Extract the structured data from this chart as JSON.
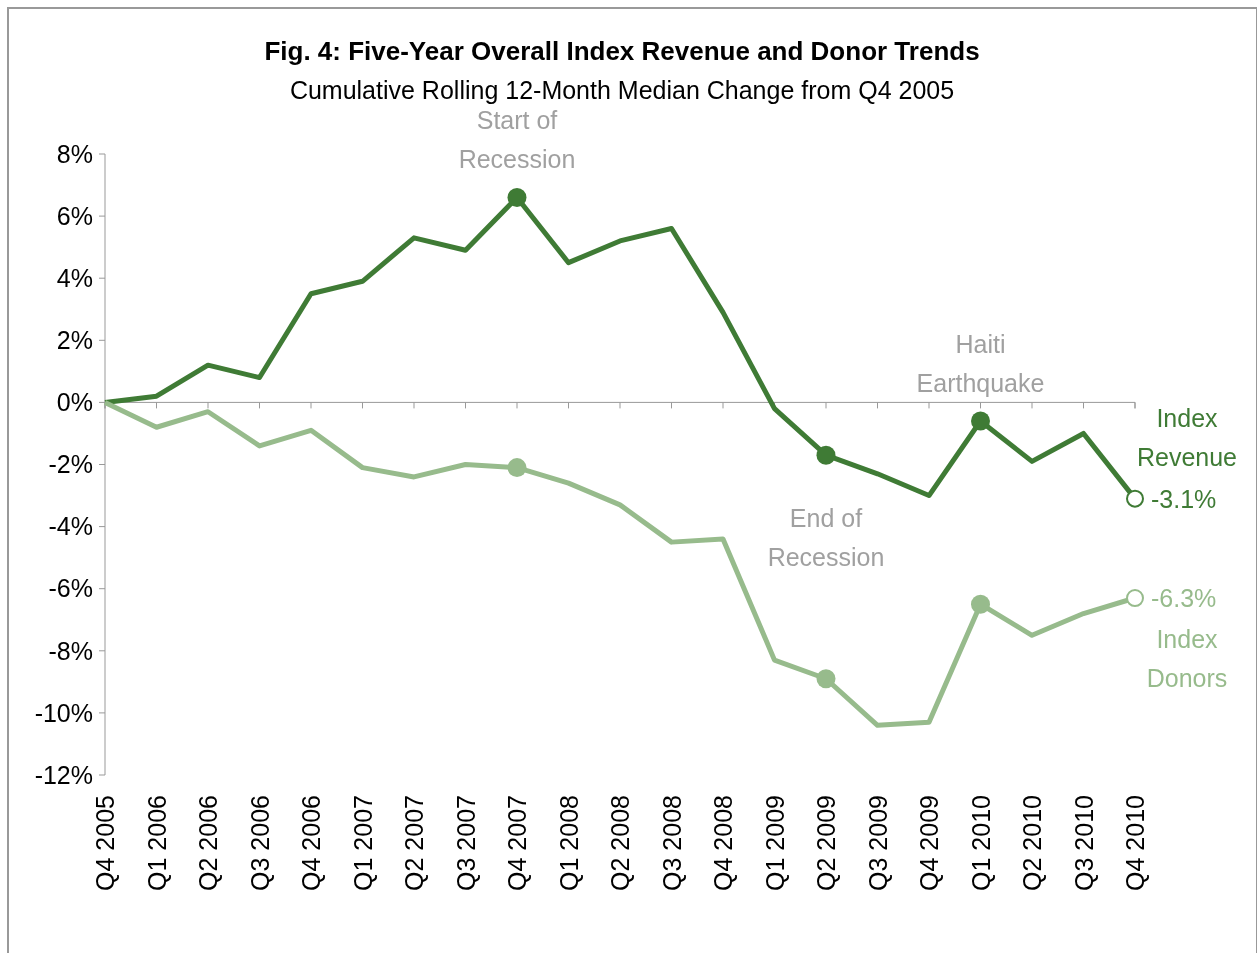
{
  "chart_data": {
    "type": "line",
    "title": "Fig. 4: Five-Year Overall Index Revenue and Donor Trends",
    "subtitle": "Cumulative Rolling 12-Month Median Change from Q4 2005",
    "categories": [
      "Q4 2005",
      "Q1 2006",
      "Q2 2006",
      "Q3 2006",
      "Q4 2006",
      "Q1 2007",
      "Q2 2007",
      "Q3 2007",
      "Q4 2007",
      "Q1 2008",
      "Q2 2008",
      "Q3 2008",
      "Q4 2008",
      "Q1 2009",
      "Q2 2009",
      "Q3 2009",
      "Q4 2009",
      "Q1 2010",
      "Q2 2010",
      "Q3 2010",
      "Q4 2010"
    ],
    "series": [
      {
        "name": "Index Revenue",
        "color": "#3f7b35",
        "values": [
          0,
          0.2,
          1.2,
          0.8,
          3.5,
          3.9,
          5.3,
          4.9,
          6.6,
          4.5,
          5.2,
          5.6,
          2.9,
          -0.2,
          -1.7,
          -2.3,
          -3.0,
          -0.6,
          -1.9,
          -1.0,
          -3.1
        ],
        "value_labels": [
          null,
          null,
          null,
          null,
          null,
          null,
          null,
          null,
          null,
          null,
          null,
          null,
          null,
          null,
          null,
          null,
          null,
          null,
          null,
          null,
          "-3.1%"
        ]
      },
      {
        "name": "Index Donors",
        "color": "#97bb8c",
        "values": [
          0,
          -0.8,
          -0.3,
          -1.4,
          -0.9,
          -2.1,
          -2.4,
          -2.0,
          -2.1,
          -2.6,
          -3.3,
          -4.5,
          -4.4,
          -8.3,
          -8.9,
          -10.4,
          -10.3,
          -6.5,
          -7.5,
          -6.8,
          -6.3
        ],
        "value_labels": [
          null,
          null,
          null,
          null,
          null,
          null,
          null,
          null,
          null,
          null,
          null,
          null,
          null,
          null,
          null,
          null,
          null,
          null,
          null,
          null,
          "-6.3%"
        ]
      },
      {
        "type": "scatter",
        "color": "#3f7b35",
        "x": [
          "Q4 2007",
          "Q2 2009",
          "Q1 2010"
        ],
        "values": [
          6.6,
          -1.7,
          -0.6
        ]
      },
      {
        "type": "scatter",
        "color": "#97bb8c",
        "x": [
          "Q4 2007",
          "Q2 2009",
          "Q1 2010"
        ],
        "values": [
          -2.1,
          -8.9,
          -6.5
        ]
      }
    ],
    "ylim": [
      -12,
      8
    ],
    "yticks": [
      {
        "value": -12,
        "label": "-12%"
      },
      {
        "value": -10,
        "label": "-10%"
      },
      {
        "value": -8,
        "label": "-8%"
      },
      {
        "value": -6,
        "label": "-6%"
      },
      {
        "value": -4,
        "label": "-4%"
      },
      {
        "value": -2,
        "label": "-2%"
      },
      {
        "value": 0,
        "label": "0%"
      },
      {
        "value": 2,
        "label": "2%"
      },
      {
        "value": 4,
        "label": "4%"
      },
      {
        "value": 6,
        "label": "6%"
      },
      {
        "value": 8,
        "label": "8%"
      }
    ],
    "annotations": [
      {
        "text": "Start of Recession",
        "x": "Q4 2007",
        "y": 6.6
      },
      {
        "text": "End of Recession",
        "x": "Q2 2009",
        "y": -1.7
      },
      {
        "text": "Haiti Earthquake",
        "x": "Q1 2010",
        "y": -0.6
      }
    ],
    "grid": false,
    "legend": false,
    "line_style": "solid"
  }
}
